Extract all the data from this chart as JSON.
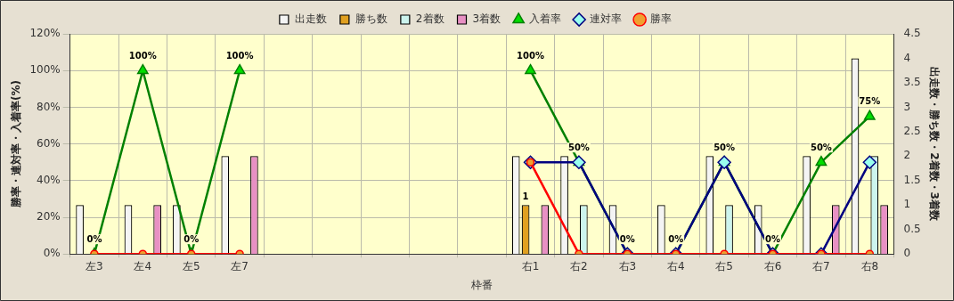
{
  "chart_data": {
    "type": "bar",
    "xlabel": "枠番",
    "ylabel": "勝率・連対率・入着率(%)",
    "y2label": "出走数・勝ち数・2着数・3着数",
    "categories": [
      "左3",
      "左4",
      "左5",
      "左7",
      null,
      null,
      null,
      null,
      null,
      "右1",
      "右2",
      "右3",
      "右4",
      "右5",
      "右6",
      "右7",
      "右8"
    ],
    "series": [
      {
        "name": "出走数",
        "axis": "y2",
        "color": "#f4f4f4",
        "values": [
          1,
          1,
          1,
          2,
          null,
          null,
          null,
          null,
          null,
          2,
          2,
          1,
          1,
          2,
          1,
          2,
          4
        ]
      },
      {
        "name": "勝ち数",
        "axis": "y2",
        "color": "#e0a020",
        "values": [
          0,
          0,
          0,
          0,
          null,
          null,
          null,
          null,
          null,
          1,
          0,
          0,
          0,
          0,
          0,
          0,
          0
        ],
        "value_labels": [
          null,
          null,
          null,
          null,
          null,
          null,
          null,
          null,
          null,
          "1",
          null,
          null,
          null,
          null,
          null,
          null,
          null
        ]
      },
      {
        "name": "2着数",
        "axis": "y2",
        "color": "#ccf4ee",
        "values": [
          0,
          0,
          0,
          0,
          null,
          null,
          null,
          null,
          null,
          0,
          1,
          0,
          0,
          1,
          0,
          0,
          2
        ]
      },
      {
        "name": "3着数",
        "axis": "y2",
        "color": "#e890c4",
        "values": [
          0,
          1,
          0,
          2,
          null,
          null,
          null,
          null,
          null,
          1,
          0,
          0,
          0,
          0,
          0,
          1,
          1
        ]
      },
      {
        "name": "入着率",
        "type": "line",
        "marker": "triangle",
        "color": "#008000",
        "values": [
          0,
          100,
          0,
          100,
          null,
          null,
          null,
          null,
          null,
          100,
          50,
          0,
          0,
          50,
          0,
          50,
          75
        ],
        "value_labels": [
          "0%",
          "100%",
          "0%",
          "100%",
          null,
          null,
          null,
          null,
          null,
          "100%",
          "50%",
          "0%",
          "0%",
          "50%",
          "0%",
          "50%",
          "75%"
        ]
      },
      {
        "name": "連対率",
        "type": "line",
        "marker": "diamond",
        "color": "#000080",
        "values": [
          null,
          null,
          null,
          null,
          null,
          null,
          null,
          null,
          null,
          50,
          50,
          0,
          0,
          50,
          0,
          0,
          50
        ]
      },
      {
        "name": "勝率",
        "type": "line",
        "marker": "circle",
        "color": "#ff0000",
        "values": [
          0,
          0,
          0,
          0,
          null,
          null,
          null,
          null,
          null,
          50,
          0,
          0,
          0,
          0,
          0,
          0,
          0
        ]
      }
    ],
    "ylim": [
      0,
      120
    ],
    "yticks": [
      {
        "value": 0,
        "label": "0%"
      },
      {
        "value": 20,
        "label": "20%"
      },
      {
        "value": 40,
        "label": "40%"
      },
      {
        "value": 60,
        "label": "60%"
      },
      {
        "value": 80,
        "label": "80%"
      },
      {
        "value": 100,
        "label": "100%"
      },
      {
        "value": 120,
        "label": "120%"
      }
    ],
    "y2lim": [
      0,
      4.5
    ],
    "y2ticks": [
      0,
      0.5,
      1,
      1.5,
      2,
      2.5,
      3,
      3.5,
      4,
      4.5
    ],
    "grid": true,
    "legend": "top"
  }
}
